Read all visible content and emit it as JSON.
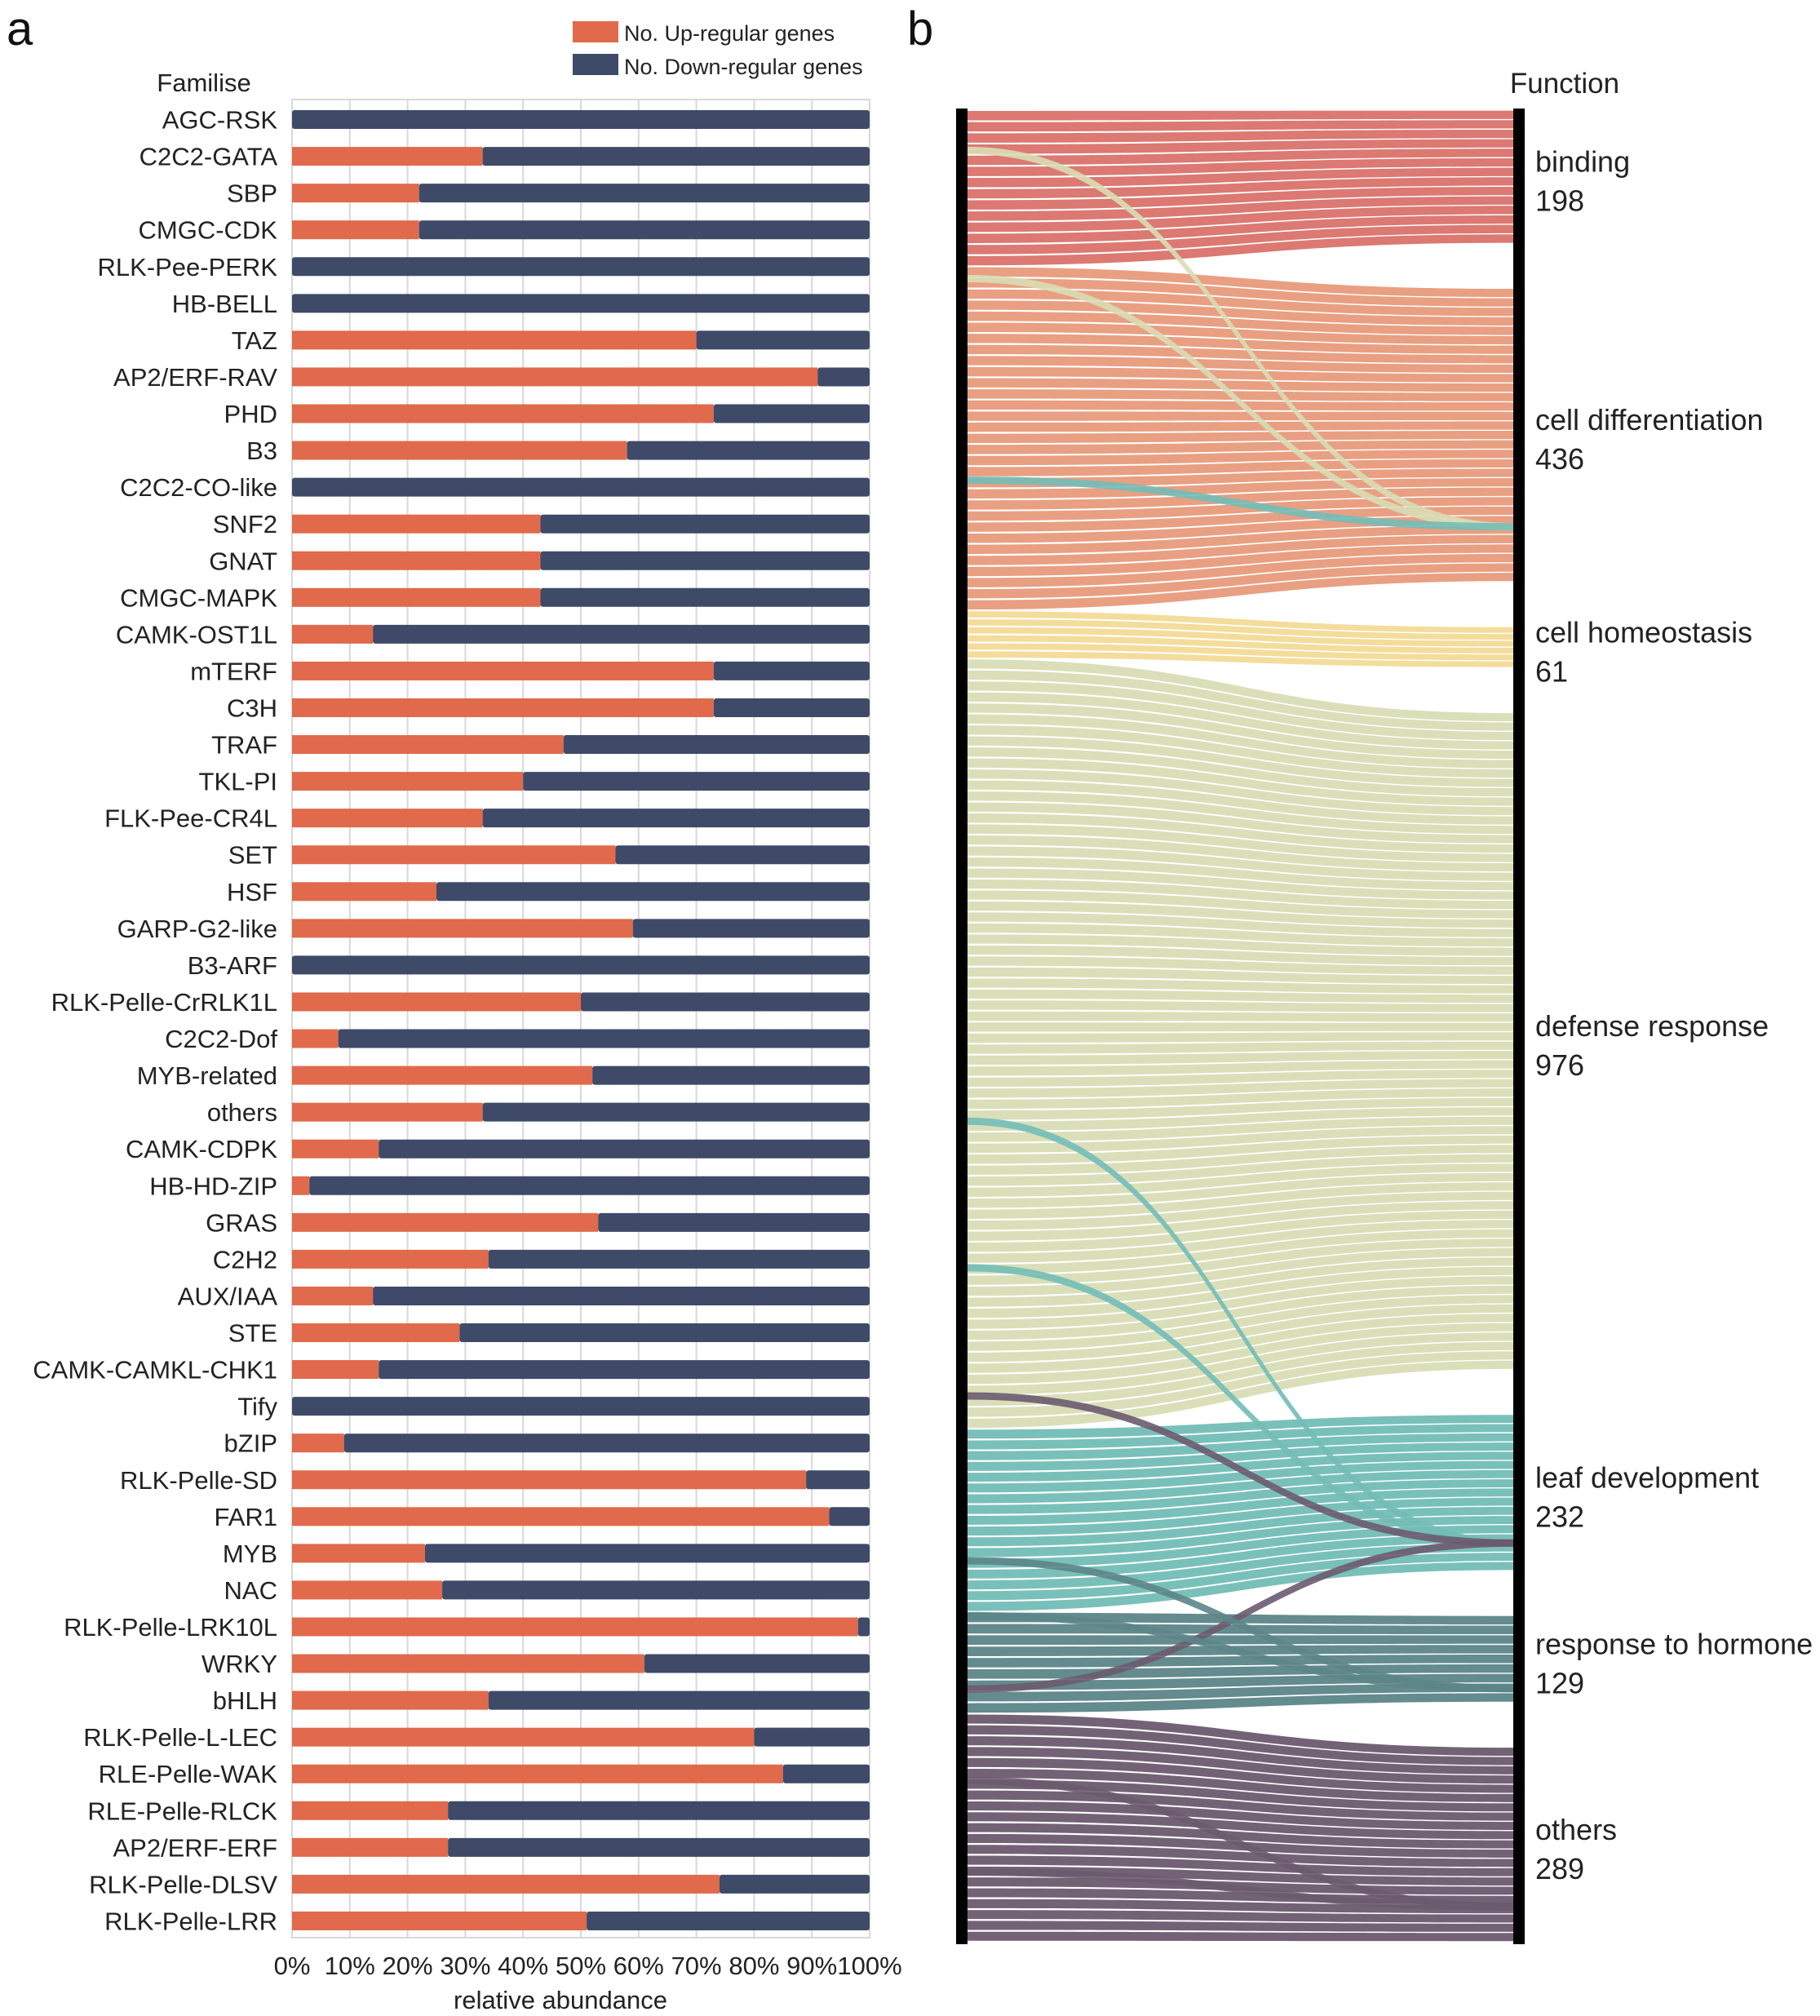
{
  "panels": {
    "a": "a",
    "b": "b"
  },
  "colors": {
    "up": "#E06A4B",
    "down": "#3E4A68",
    "grid": "#D8D8D8",
    "axis_bar": "#000000"
  },
  "chart_data": [
    {
      "type": "bar",
      "stacked": "percent",
      "orientation": "horizontal",
      "title": "",
      "category_axis_title": "Familise",
      "xlabel": "relative abundance",
      "xlim": [
        0,
        100
      ],
      "xticks": [
        "0%",
        "10%",
        "20%",
        "30%",
        "40%",
        "50%",
        "60%",
        "70%",
        "80%",
        "90%",
        "100%"
      ],
      "grid": true,
      "legend": "top-right",
      "categories": [
        "AGC-RSK",
        "C2C2-GATA",
        "SBP",
        "CMGC-CDK",
        "RLK-Pee-PERK",
        "HB-BELL",
        "TAZ",
        "AP2/ERF-RAV",
        "PHD",
        "B3",
        "C2C2-CO-like",
        "SNF2",
        "GNAT",
        "CMGC-MAPK",
        "CAMK-OST1L",
        "mTERF",
        "C3H",
        "TRAF",
        "TKL-PI",
        "FLK-Pee-CR4L",
        "SET",
        "HSF",
        "GARP-G2-like",
        "B3-ARF",
        "RLK-Pelle-CrRLK1L",
        "C2C2-Dof",
        "MYB-related",
        "others",
        "CAMK-CDPK",
        "HB-HD-ZIP",
        "GRAS",
        "C2H2",
        "AUX/IAA",
        "STE",
        "CAMK-CAMKL-CHK1",
        "Tify",
        "bZIP",
        "RLK-Pelle-SD",
        "FAR1",
        "MYB",
        "NAC",
        "RLK-Pelle-LRK10L",
        "WRKY",
        "bHLH",
        "RLK-Pelle-L-LEC",
        "RLE-Pelle-WAK",
        "RLE-Pelle-RLCK",
        "AP2/ERF-ERF",
        "RLK-Pelle-DLSV",
        "RLK-Pelle-LRR"
      ],
      "series": [
        {
          "name": "No. Up-regular genes",
          "values": [
            0,
            33,
            22,
            22,
            0,
            0,
            70,
            91,
            73,
            58,
            0,
            43,
            43,
            43,
            14,
            73,
            73,
            47,
            40,
            33,
            56,
            25,
            59,
            0,
            50,
            8,
            52,
            33,
            15,
            3,
            53,
            34,
            14,
            29,
            15,
            0,
            9,
            89,
            93,
            23,
            26,
            98,
            61,
            34,
            80,
            85,
            27,
            27,
            74,
            51
          ]
        },
        {
          "name": "No. Down-regular genes",
          "values": [
            100,
            67,
            78,
            78,
            100,
            100,
            30,
            9,
            27,
            42,
            100,
            57,
            57,
            57,
            86,
            27,
            27,
            53,
            60,
            67,
            44,
            75,
            41,
            100,
            50,
            92,
            48,
            67,
            85,
            97,
            47,
            66,
            86,
            71,
            85,
            100,
            91,
            11,
            7,
            77,
            74,
            2,
            39,
            66,
            20,
            15,
            73,
            73,
            26,
            49
          ]
        }
      ]
    },
    {
      "type": "sankey",
      "column_title": "Function",
      "nodes": [
        {
          "name": "binding",
          "value": 198,
          "color": "#D9726A"
        },
        {
          "name": "cell differentiation",
          "value": 436,
          "color": "#E89A7B"
        },
        {
          "name": "cell homeostasis",
          "value": 61,
          "color": "#F3DA96"
        },
        {
          "name": "defense response",
          "value": 976,
          "color": "#D8DDB5"
        },
        {
          "name": "leaf development",
          "value": 232,
          "color": "#72BDB6"
        },
        {
          "name": "response to hormone",
          "value": 129,
          "color": "#5C8588"
        },
        {
          "name": "others",
          "value": 289,
          "color": "#6C5A6F"
        }
      ]
    }
  ]
}
